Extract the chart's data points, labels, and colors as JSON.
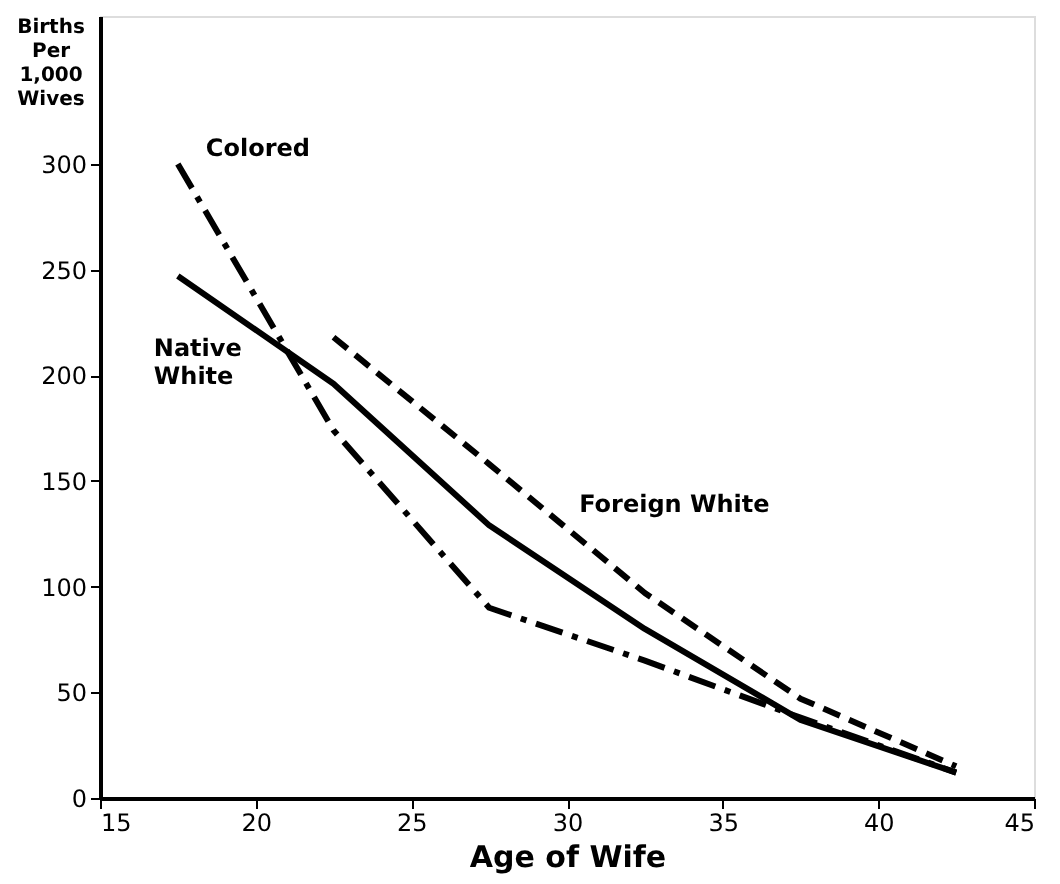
{
  "chart_data": {
    "type": "line",
    "xlabel": "Age of Wife",
    "ylabel": "Births Per 1,000 Wives",
    "x": [
      17.5,
      22.5,
      27.5,
      32.5,
      37.5,
      42.5
    ],
    "series": [
      {
        "name": "Colored",
        "color": "#000000",
        "line_style": "dashdot",
        "values": [
          300,
          174,
          90,
          65,
          38,
          12
        ]
      },
      {
        "name": "Native White",
        "color": "#000000",
        "line_style": "solid",
        "values": [
          247,
          196,
          129,
          80,
          37,
          12
        ]
      },
      {
        "name": "Foreign White",
        "color": "#000000",
        "line_style": "dashed",
        "values": [
          null,
          218,
          158,
          97,
          47,
          15
        ]
      }
    ],
    "xlim": [
      15,
      45
    ],
    "xticks": [
      15,
      20,
      25,
      30,
      35,
      40,
      45
    ],
    "ylim": [
      0,
      370
    ],
    "yticks": [
      0,
      50,
      100,
      150,
      200,
      250,
      300
    ],
    "grid": false,
    "legend": false,
    "marker": "none"
  }
}
